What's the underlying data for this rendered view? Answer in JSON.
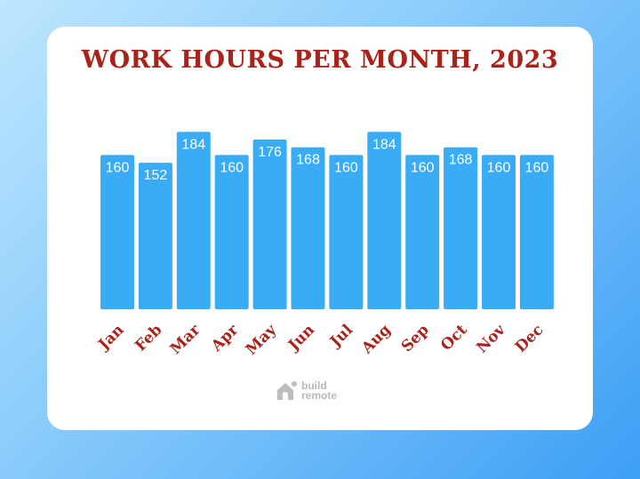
{
  "chart_data": {
    "type": "bar",
    "title": "WORK HOURS PER MONTH, 2023",
    "categories": [
      "Jan",
      "Feb",
      "Mar",
      "Apr",
      "May",
      "Jun",
      "Jul",
      "Aug",
      "Sep",
      "Oct",
      "Nov",
      "Dec"
    ],
    "values": [
      160,
      152,
      184,
      160,
      176,
      168,
      160,
      184,
      160,
      168,
      160,
      160
    ],
    "data_labels": true,
    "grid": false,
    "ylim": [
      0,
      184
    ],
    "colors": {
      "bar": "#3aabf5",
      "title": "#a8231a",
      "label": "#a8231a",
      "value_text": "#ffffff"
    }
  },
  "logo": {
    "line1": "build",
    "line2": "remote"
  }
}
